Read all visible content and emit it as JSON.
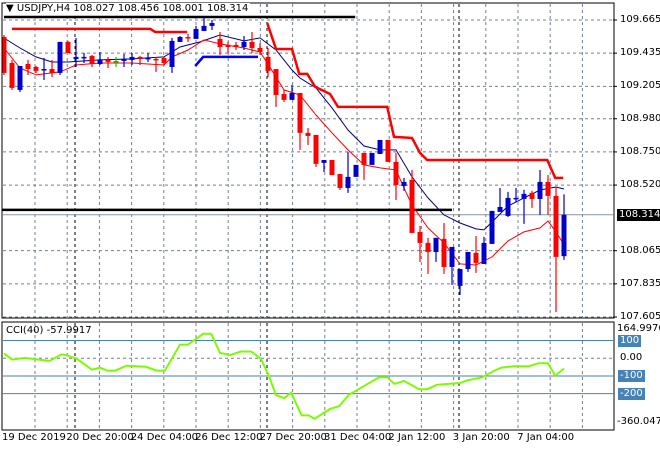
{
  "header": {
    "menu_icon": "triangle-down-icon",
    "symbol": "USDJPY,H4",
    "ohlc": "108.027 108.456 108.001 108.314"
  },
  "cci_header": {
    "label": "CCI(40)",
    "value": "-57.9917"
  },
  "colors": {
    "bull": "#0000cd",
    "bear": "#ff0000",
    "doji": "#00c800",
    "ma_fast": "#ff0000",
    "ma_slow": "#000080",
    "resistance": "#ff0000",
    "support": "#0000ff",
    "cci": "#7cfc00",
    "level": "#4682b4",
    "grid": "#708090"
  },
  "chart_data": [
    {
      "type": "candlestick",
      "title": "USDJPY,H4",
      "ylim": [
        107.605,
        109.665
      ],
      "y_ticks": [
        "109.665",
        "109.435",
        "109.205",
        "108.980",
        "108.750",
        "108.520",
        "108.065",
        "107.835",
        "107.605"
      ],
      "current_price": "108.314",
      "x_ticks": [
        "19 Dec 2019",
        "20 Dec 20:00",
        "24 Dec 04:00",
        "26 Dec 12:00",
        "27 Dec 20:00",
        "31 Dec 04:00",
        "2 Jan 12:00",
        "3 Jan 20:00",
        "7 Jan 04:00"
      ],
      "grid": true,
      "candles_ohlc": [
        [
          109.547,
          109.561,
          109.284,
          109.298
        ],
        [
          109.367,
          109.388,
          109.18,
          109.194
        ],
        [
          109.18,
          109.346,
          109.166,
          109.346
        ],
        [
          109.36,
          109.388,
          109.284,
          109.325
        ],
        [
          109.339,
          109.346,
          109.298,
          109.312
        ],
        [
          109.318,
          109.402,
          109.249,
          109.325
        ],
        [
          109.325,
          109.388,
          109.27,
          109.298
        ],
        [
          109.298,
          109.513,
          109.284,
          109.513
        ],
        [
          109.513,
          109.52,
          109.436,
          109.436
        ],
        [
          109.395,
          109.54,
          109.339,
          109.409
        ],
        [
          109.402,
          109.436,
          109.367,
          109.409
        ],
        [
          109.416,
          109.423,
          109.339,
          109.36
        ],
        [
          109.36,
          109.443,
          109.353,
          109.388
        ],
        [
          109.388,
          109.409,
          109.332,
          109.374
        ],
        [
          109.381,
          109.409,
          109.339,
          109.381
        ],
        [
          109.381,
          109.429,
          109.339,
          109.395
        ],
        [
          109.388,
          109.436,
          109.353,
          109.409
        ],
        [
          109.409,
          109.416,
          109.353,
          109.395
        ],
        [
          109.395,
          109.436,
          109.374,
          109.402
        ],
        [
          109.395,
          109.409,
          109.305,
          109.388
        ],
        [
          109.402,
          109.409,
          109.353,
          109.367
        ],
        [
          109.339,
          109.54,
          109.298,
          109.52
        ],
        [
          109.513,
          109.554,
          109.513,
          109.547
        ],
        [
          109.547,
          109.568,
          109.513,
          109.54
        ],
        [
          109.534,
          109.624,
          109.534,
          109.603
        ],
        [
          109.589,
          109.686,
          109.589,
          109.624
        ],
        [
          109.624,
          109.665,
          109.596,
          109.644
        ],
        [
          109.534,
          109.582,
          109.423,
          109.478
        ],
        [
          109.492,
          109.513,
          109.436,
          109.478
        ],
        [
          109.492,
          109.513,
          109.457,
          109.478
        ],
        [
          109.478,
          109.554,
          109.457,
          109.513
        ],
        [
          109.513,
          109.582,
          109.436,
          109.471
        ],
        [
          109.471,
          109.506,
          109.423,
          109.443
        ],
        [
          109.409,
          109.471,
          109.27,
          109.312
        ],
        [
          109.325,
          109.325,
          109.062,
          109.145
        ],
        [
          109.152,
          109.18,
          109.097,
          109.111
        ],
        [
          109.111,
          109.215,
          109.111,
          109.159
        ],
        [
          109.159,
          109.159,
          108.764,
          108.882
        ],
        [
          108.882,
          108.916,
          108.798,
          108.861
        ],
        [
          108.868,
          108.868,
          108.646,
          108.667
        ],
        [
          108.674,
          108.694,
          108.611,
          108.694
        ],
        [
          108.694,
          108.694,
          108.59,
          108.59
        ],
        [
          108.597,
          108.597,
          108.486,
          108.5
        ],
        [
          108.5,
          108.75,
          108.466,
          108.577
        ],
        [
          108.577,
          108.66,
          108.577,
          108.66
        ],
        [
          108.743,
          108.743,
          108.556,
          108.66
        ],
        [
          108.66,
          108.743,
          108.66,
          108.743
        ],
        [
          108.736,
          108.833,
          108.736,
          108.833
        ],
        [
          108.833,
          108.833,
          108.681,
          108.681
        ],
        [
          108.681,
          108.743,
          108.417,
          108.521
        ],
        [
          108.514,
          108.57,
          108.48,
          108.542
        ],
        [
          108.556,
          108.625,
          108.188,
          108.188
        ],
        [
          108.195,
          108.237,
          107.987,
          108.119
        ],
        [
          108.119,
          108.154,
          107.904,
          108.056
        ],
        [
          108.056,
          108.154,
          107.987,
          108.154
        ],
        [
          108.147,
          108.257,
          107.904,
          107.952
        ],
        [
          107.952,
          108.091,
          107.827,
          108.091
        ],
        [
          107.821,
          107.938,
          107.758,
          107.938
        ],
        [
          107.938,
          108.056,
          107.918,
          108.056
        ],
        [
          108.05,
          108.167,
          107.911,
          107.98
        ],
        [
          107.973,
          108.161,
          107.973,
          108.119
        ],
        [
          108.112,
          108.341,
          108.112,
          108.341
        ],
        [
          108.334,
          108.5,
          108.334,
          108.368
        ],
        [
          108.306,
          108.473,
          108.299,
          108.431
        ],
        [
          108.424,
          108.5,
          108.403,
          108.431
        ],
        [
          108.424,
          108.487,
          108.251,
          108.459
        ],
        [
          108.466,
          108.48,
          108.362,
          108.424
        ],
        [
          108.424,
          108.625,
          108.313,
          108.542
        ],
        [
          108.542,
          108.59,
          108.313,
          108.445
        ],
        [
          108.445,
          108.507,
          107.64,
          108.022
        ],
        [
          108.027,
          108.456,
          108.001,
          108.314
        ]
      ],
      "overlays": {
        "ma_slow": [
          [
            0,
            109.54
          ],
          [
            2,
            109.471
          ],
          [
            4,
            109.409
          ],
          [
            6,
            109.374
          ],
          [
            8,
            109.374
          ],
          [
            12,
            109.388
          ],
          [
            16,
            109.395
          ],
          [
            20,
            109.409
          ],
          [
            22,
            109.478
          ],
          [
            24.5,
            109.513
          ],
          [
            27,
            109.561
          ],
          [
            30,
            109.52
          ],
          [
            32,
            109.541
          ],
          [
            34,
            109.457
          ],
          [
            36,
            109.318
          ],
          [
            37,
            109.263
          ],
          [
            39,
            109.194
          ],
          [
            41,
            109.055
          ],
          [
            43,
            108.902
          ],
          [
            45,
            108.791
          ],
          [
            47,
            108.764
          ],
          [
            49,
            108.764
          ],
          [
            51,
            108.577
          ],
          [
            53,
            108.431
          ],
          [
            55,
            108.313
          ],
          [
            57,
            108.257
          ],
          [
            59,
            108.216
          ],
          [
            60,
            108.209
          ],
          [
            61,
            108.264
          ],
          [
            63,
            108.375
          ],
          [
            65,
            108.431
          ],
          [
            67,
            108.486
          ],
          [
            69,
            108.507
          ],
          [
            70,
            108.493
          ]
        ],
        "ma_fast": [
          [
            0,
            109.471
          ],
          [
            2,
            109.332
          ],
          [
            4,
            109.284
          ],
          [
            7,
            109.305
          ],
          [
            9,
            109.353
          ],
          [
            12,
            109.367
          ],
          [
            16,
            109.367
          ],
          [
            20,
            109.353
          ],
          [
            21,
            109.409
          ],
          [
            23,
            109.457
          ],
          [
            25,
            109.527
          ],
          [
            27,
            109.499
          ],
          [
            30,
            109.471
          ],
          [
            32,
            109.443
          ],
          [
            33,
            109.36
          ],
          [
            35,
            109.18
          ],
          [
            37,
            109.145
          ],
          [
            39,
            109.006
          ],
          [
            41,
            108.882
          ],
          [
            43,
            108.764
          ],
          [
            45,
            108.66
          ],
          [
            47,
            108.639
          ],
          [
            49,
            108.625
          ],
          [
            50,
            108.5
          ],
          [
            51,
            108.382
          ],
          [
            53,
            108.223
          ],
          [
            55,
            108.119
          ],
          [
            57,
            107.973
          ],
          [
            59,
            107.966
          ],
          [
            61,
            108.022
          ],
          [
            63,
            108.133
          ],
          [
            65,
            108.195
          ],
          [
            67,
            108.223
          ],
          [
            68,
            108.271
          ],
          [
            69,
            108.195
          ],
          [
            70,
            108.105
          ]
        ],
        "resistance": [
          [
            [
              1,
              109.603
            ],
            [
              18.3,
              109.603
            ],
            [
              18.9,
              109.582
            ],
            [
              22.9,
              109.582
            ]
          ],
          [
            [
              32.9,
              109.644
            ],
            [
              34,
              109.464
            ],
            [
              36,
              109.464
            ],
            [
              36.9,
              109.291
            ],
            [
              37.9,
              109.291
            ],
            [
              38.9,
              109.201
            ],
            [
              40.75,
              109.152
            ],
            [
              41.75,
              109.062
            ],
            [
              47.9,
              109.062
            ],
            [
              48.75,
              108.854
            ],
            [
              51,
              108.847
            ],
            [
              52,
              108.743
            ],
            [
              52.9,
              108.694
            ],
            [
              67.9,
              108.694
            ],
            [
              68.9,
              108.57
            ],
            [
              69.9,
              108.57
            ]
          ]
        ],
        "support": [
          [
            23.9,
            109.346
          ],
          [
            24.9,
            109.409
          ],
          [
            31.75,
            109.409
          ]
        ],
        "hlines": [
          {
            "price": 109.686,
            "from": 0,
            "to": 43.9
          },
          {
            "price": 108.348,
            "from": -0.25,
            "to": 56
          }
        ]
      }
    },
    {
      "type": "line",
      "title": "CCI(40)",
      "ylim": [
        -360.0478,
        164.9976
      ],
      "y_ticks": [
        "164.9976",
        "100",
        "0.00",
        "-100",
        "-200",
        "-360.0478"
      ],
      "levels": [
        100,
        -100,
        -200
      ],
      "series": [
        [
          0,
          27
        ],
        [
          1,
          -8
        ],
        [
          2.6,
          2
        ],
        [
          4.3,
          -8
        ],
        [
          5.7,
          -15
        ],
        [
          7.2,
          22
        ],
        [
          8.1,
          13
        ],
        [
          9.1,
          -3
        ],
        [
          11,
          -65
        ],
        [
          12,
          -53
        ],
        [
          12.9,
          -70
        ],
        [
          13.9,
          -70
        ],
        [
          15.3,
          -42
        ],
        [
          17.7,
          -48
        ],
        [
          19.1,
          -70
        ],
        [
          20.1,
          -70
        ],
        [
          22,
          77
        ],
        [
          23,
          77
        ],
        [
          24.9,
          138
        ],
        [
          25.9,
          138
        ],
        [
          27,
          30
        ],
        [
          28.3,
          18
        ],
        [
          29.6,
          38
        ],
        [
          30.9,
          38
        ],
        [
          32.1,
          -3
        ],
        [
          33,
          -87
        ],
        [
          34,
          -208
        ],
        [
          35,
          -225
        ],
        [
          35.9,
          -195
        ],
        [
          37.2,
          -323
        ],
        [
          38.1,
          -323
        ],
        [
          38.8,
          -342
        ],
        [
          40.7,
          -287
        ],
        [
          41.9,
          -270
        ],
        [
          43.1,
          -207
        ],
        [
          44.5,
          -170
        ],
        [
          46.9,
          -107
        ],
        [
          47.9,
          -107
        ],
        [
          48.8,
          -145
        ],
        [
          50,
          -128
        ],
        [
          51.9,
          -175
        ],
        [
          52.9,
          -175
        ],
        [
          54.1,
          -150
        ],
        [
          55.5,
          -145
        ],
        [
          57,
          -140
        ],
        [
          57.9,
          -125
        ],
        [
          59.8,
          -107
        ],
        [
          61.3,
          -70
        ],
        [
          62.2,
          -53
        ],
        [
          63.7,
          -45
        ],
        [
          65.6,
          -45
        ],
        [
          66.8,
          -28
        ],
        [
          68,
          -28
        ],
        [
          68.9,
          -98
        ],
        [
          70,
          -58
        ]
      ]
    }
  ]
}
